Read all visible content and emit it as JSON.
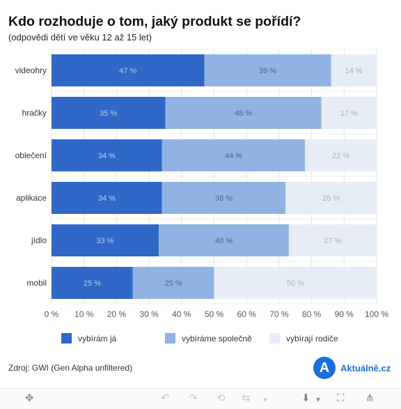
{
  "title": "Kdo rozhoduje o tom, jaký produkt se pořídí?",
  "subtitle": "(odpovědi dětí ve věku 12 až 15 let)",
  "colors": {
    "vybiram_ja": "#3068c8",
    "vybirame_spolecne": "#91b3e3",
    "vybiraji_rodice": "#e6edf7",
    "label_dark_segment": "#b8cdf0",
    "label_mid_segment": "#4a6390",
    "label_light_segment": "#a9b1bd"
  },
  "chart_data": {
    "type": "bar",
    "orientation": "horizontal",
    "stacked": true,
    "categories": [
      "videohry",
      "hračky",
      "oblečení",
      "aplikace",
      "jídlo",
      "mobil"
    ],
    "series": [
      {
        "name": "vybírám já",
        "values": [
          47,
          35,
          34,
          34,
          33,
          25
        ]
      },
      {
        "name": "vybíráme společně",
        "values": [
          39,
          48,
          44,
          38,
          40,
          25
        ]
      },
      {
        "name": "vybírají rodiče",
        "values": [
          14,
          17,
          22,
          28,
          27,
          50
        ]
      }
    ],
    "value_labels": [
      [
        "47 %",
        "35 %",
        "34 %",
        "34 %",
        "33 %",
        "25 %"
      ],
      [
        "39 %",
        "48 %",
        "44 %",
        "38 %",
        "40 %",
        "25 %"
      ],
      [
        "14 %",
        "17 %",
        "22 %",
        "28 %",
        "27 %",
        "50 %"
      ]
    ],
    "xlim": [
      0,
      100
    ],
    "x_ticks": [
      0,
      10,
      20,
      30,
      40,
      50,
      60,
      70,
      80,
      90,
      100
    ],
    "x_tick_labels": [
      "0 %",
      "10 %",
      "20 %",
      "30 %",
      "40 %",
      "50 %",
      "60 %",
      "70 %",
      "80 %",
      "90 %",
      "100 %"
    ],
    "gridlines": true,
    "legend_position": "bottom"
  },
  "legend": [
    {
      "label": "vybírám já",
      "color": "#3068c8"
    },
    {
      "label": "vybíráme společně",
      "color": "#91b3e3"
    },
    {
      "label": "vybírají rodiče",
      "color": "#e6edf7"
    }
  ],
  "source": "Zdroj: GWI (Gen Alpha unfiltered)",
  "logo": {
    "letter": "A",
    "text": "Aktuálně.cz"
  },
  "toolbar": {
    "icons": [
      "move-icon",
      "undo-icon",
      "redo-icon",
      "revert-icon",
      "refresh-icon",
      "download-icon",
      "fullscreen-icon",
      "share-icon"
    ]
  }
}
